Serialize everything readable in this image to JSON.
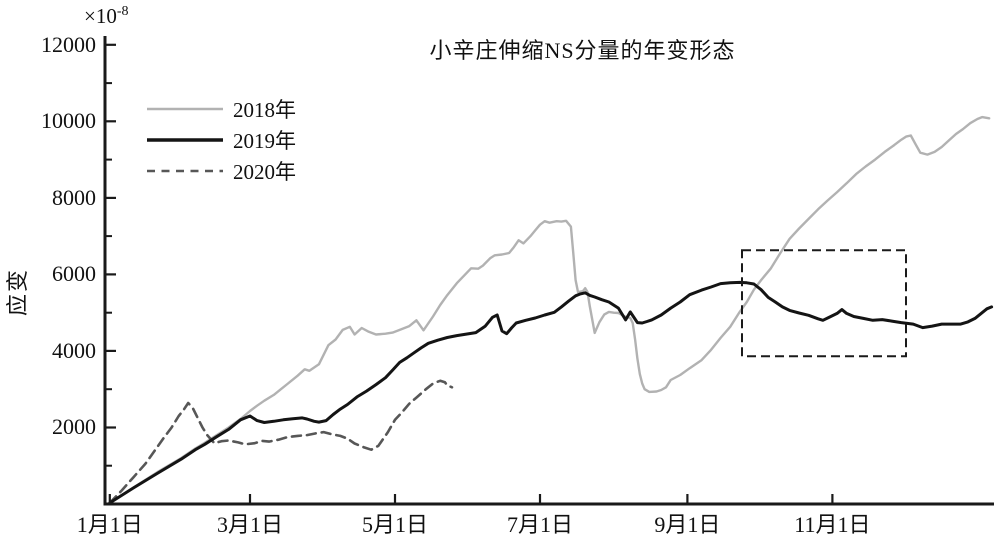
{
  "chart_data": {
    "type": "line",
    "title": "小辛庄伸缩NS分量的年变形态",
    "ylabel": "应变",
    "xlabel": "",
    "y_multiplier_base": "×10",
    "y_multiplier_exponent": "-8",
    "grid": false,
    "legend_position": "upper-left",
    "xlim": [
      -2,
      372
    ],
    "ylim": [
      0,
      12230
    ],
    "y_major_ticks": [
      2000,
      4000,
      6000,
      8000,
      10000,
      12000
    ],
    "y_minor_ticks": [
      1000,
      3000,
      5000,
      7000,
      9000,
      11000
    ],
    "x_ticks": [
      {
        "day": 0,
        "label": "1月1日"
      },
      {
        "day": 59,
        "label": "3月1日"
      },
      {
        "day": 120,
        "label": "5月1日"
      },
      {
        "day": 181,
        "label": "7月1日"
      },
      {
        "day": 243,
        "label": "9月1日"
      },
      {
        "day": 304,
        "label": "11月1日"
      }
    ],
    "axis_color": "#1a1a1a",
    "series": [
      {
        "id": "2018",
        "name": "2018年",
        "color": "#b2b2b2",
        "line_style": "solid",
        "line_width": 2.4,
        "points": [
          [
            0,
            30
          ],
          [
            10,
            430
          ],
          [
            20,
            830
          ],
          [
            30,
            1200
          ],
          [
            36,
            1450
          ],
          [
            40,
            1600
          ],
          [
            45,
            1800
          ],
          [
            50,
            2000
          ],
          [
            55,
            2220
          ],
          [
            59,
            2430
          ],
          [
            62,
            2570
          ],
          [
            65,
            2700
          ],
          [
            69,
            2850
          ],
          [
            72,
            3000
          ],
          [
            75,
            3150
          ],
          [
            79,
            3350
          ],
          [
            82,
            3520
          ],
          [
            84,
            3480
          ],
          [
            88,
            3650
          ],
          [
            92,
            4150
          ],
          [
            95,
            4300
          ],
          [
            98,
            4550
          ],
          [
            101,
            4630
          ],
          [
            103,
            4430
          ],
          [
            106,
            4600
          ],
          [
            109,
            4500
          ],
          [
            112,
            4430
          ],
          [
            116,
            4450
          ],
          [
            119,
            4480
          ],
          [
            122,
            4550
          ],
          [
            126,
            4650
          ],
          [
            129,
            4800
          ],
          [
            132,
            4540
          ],
          [
            136,
            4900
          ],
          [
            139,
            5200
          ],
          [
            142,
            5460
          ],
          [
            146,
            5770
          ],
          [
            150,
            6030
          ],
          [
            152,
            6160
          ],
          [
            155,
            6150
          ],
          [
            157,
            6230
          ],
          [
            160,
            6420
          ],
          [
            162,
            6500
          ],
          [
            165,
            6520
          ],
          [
            168,
            6560
          ],
          [
            170,
            6710
          ],
          [
            172,
            6890
          ],
          [
            174,
            6810
          ],
          [
            177,
            7000
          ],
          [
            179,
            7150
          ],
          [
            181,
            7300
          ],
          [
            183,
            7390
          ],
          [
            185,
            7350
          ],
          [
            188,
            7390
          ],
          [
            190,
            7380
          ],
          [
            192,
            7400
          ],
          [
            194,
            7250
          ],
          [
            195,
            6550
          ],
          [
            196,
            5850
          ],
          [
            197,
            5540
          ],
          [
            199,
            5560
          ],
          [
            200,
            5640
          ],
          [
            201,
            5540
          ],
          [
            202,
            5150
          ],
          [
            204,
            4470
          ],
          [
            206,
            4750
          ],
          [
            208,
            4950
          ],
          [
            210,
            5020
          ],
          [
            212,
            5000
          ],
          [
            214,
            4990
          ],
          [
            217,
            4890
          ],
          [
            219,
            4860
          ],
          [
            220,
            4730
          ],
          [
            221,
            4300
          ],
          [
            222,
            3800
          ],
          [
            223,
            3400
          ],
          [
            224,
            3150
          ],
          [
            225,
            3000
          ],
          [
            227,
            2930
          ],
          [
            230,
            2940
          ],
          [
            232,
            2980
          ],
          [
            234,
            3050
          ],
          [
            236,
            3240
          ],
          [
            240,
            3370
          ],
          [
            244,
            3550
          ],
          [
            249,
            3760
          ],
          [
            253,
            4030
          ],
          [
            257,
            4340
          ],
          [
            261,
            4630
          ],
          [
            265,
            5020
          ],
          [
            268,
            5280
          ],
          [
            271,
            5600
          ],
          [
            274,
            5850
          ],
          [
            278,
            6150
          ],
          [
            282,
            6550
          ],
          [
            286,
            6930
          ],
          [
            290,
            7200
          ],
          [
            294,
            7450
          ],
          [
            298,
            7700
          ],
          [
            302,
            7930
          ],
          [
            306,
            8150
          ],
          [
            310,
            8380
          ],
          [
            314,
            8620
          ],
          [
            318,
            8820
          ],
          [
            322,
            9000
          ],
          [
            326,
            9200
          ],
          [
            330,
            9380
          ],
          [
            333,
            9520
          ],
          [
            335,
            9600
          ],
          [
            337,
            9630
          ],
          [
            339,
            9400
          ],
          [
            341,
            9180
          ],
          [
            344,
            9130
          ],
          [
            347,
            9200
          ],
          [
            350,
            9330
          ],
          [
            353,
            9500
          ],
          [
            356,
            9670
          ],
          [
            359,
            9800
          ],
          [
            362,
            9950
          ],
          [
            365,
            10060
          ],
          [
            367,
            10110
          ],
          [
            370,
            10080
          ]
        ]
      },
      {
        "id": "2019",
        "name": "2019年",
        "color": "#141414",
        "line_style": "solid",
        "line_width": 3,
        "points": [
          [
            0,
            30
          ],
          [
            10,
            420
          ],
          [
            20,
            800
          ],
          [
            30,
            1170
          ],
          [
            36,
            1420
          ],
          [
            40,
            1560
          ],
          [
            45,
            1760
          ],
          [
            50,
            1950
          ],
          [
            55,
            2200
          ],
          [
            59,
            2300
          ],
          [
            62,
            2180
          ],
          [
            65,
            2130
          ],
          [
            69,
            2160
          ],
          [
            73,
            2200
          ],
          [
            77,
            2230
          ],
          [
            81,
            2250
          ],
          [
            83,
            2220
          ],
          [
            86,
            2160
          ],
          [
            88,
            2140
          ],
          [
            91,
            2180
          ],
          [
            94,
            2340
          ],
          [
            97,
            2480
          ],
          [
            100,
            2600
          ],
          [
            104,
            2800
          ],
          [
            108,
            2950
          ],
          [
            112,
            3120
          ],
          [
            116,
            3300
          ],
          [
            119,
            3500
          ],
          [
            122,
            3700
          ],
          [
            125,
            3820
          ],
          [
            128,
            3950
          ],
          [
            131,
            4080
          ],
          [
            134,
            4200
          ],
          [
            138,
            4280
          ],
          [
            142,
            4350
          ],
          [
            146,
            4400
          ],
          [
            150,
            4440
          ],
          [
            154,
            4480
          ],
          [
            158,
            4650
          ],
          [
            161,
            4880
          ],
          [
            163,
            4940
          ],
          [
            165,
            4520
          ],
          [
            167,
            4450
          ],
          [
            169,
            4600
          ],
          [
            171,
            4730
          ],
          [
            175,
            4800
          ],
          [
            179,
            4860
          ],
          [
            183,
            4940
          ],
          [
            187,
            5010
          ],
          [
            190,
            5150
          ],
          [
            193,
            5300
          ],
          [
            196,
            5440
          ],
          [
            198,
            5490
          ],
          [
            200,
            5520
          ],
          [
            202,
            5450
          ],
          [
            204,
            5410
          ],
          [
            207,
            5340
          ],
          [
            210,
            5280
          ],
          [
            214,
            5120
          ],
          [
            217,
            4810
          ],
          [
            219,
            5020
          ],
          [
            222,
            4740
          ],
          [
            224,
            4730
          ],
          [
            226,
            4770
          ],
          [
            228,
            4810
          ],
          [
            232,
            4940
          ],
          [
            236,
            5120
          ],
          [
            240,
            5280
          ],
          [
            244,
            5470
          ],
          [
            249,
            5590
          ],
          [
            253,
            5670
          ],
          [
            257,
            5760
          ],
          [
            261,
            5780
          ],
          [
            265,
            5790
          ],
          [
            268,
            5780
          ],
          [
            271,
            5750
          ],
          [
            274,
            5600
          ],
          [
            277,
            5400
          ],
          [
            280,
            5280
          ],
          [
            283,
            5150
          ],
          [
            286,
            5060
          ],
          [
            290,
            4990
          ],
          [
            294,
            4930
          ],
          [
            298,
            4840
          ],
          [
            300,
            4800
          ],
          [
            303,
            4890
          ],
          [
            306,
            4980
          ],
          [
            308,
            5080
          ],
          [
            310,
            4980
          ],
          [
            313,
            4900
          ],
          [
            317,
            4850
          ],
          [
            321,
            4800
          ],
          [
            325,
            4820
          ],
          [
            329,
            4780
          ],
          [
            333,
            4740
          ],
          [
            338,
            4700
          ],
          [
            342,
            4610
          ],
          [
            346,
            4650
          ],
          [
            350,
            4700
          ],
          [
            354,
            4700
          ],
          [
            358,
            4700
          ],
          [
            361,
            4760
          ],
          [
            364,
            4850
          ],
          [
            367,
            5000
          ],
          [
            369,
            5100
          ],
          [
            371,
            5150
          ]
        ]
      },
      {
        "id": "2020",
        "name": "2020年",
        "color": "#575757",
        "line_style": "dashed",
        "line_width": 2.6,
        "points": [
          [
            0,
            30
          ],
          [
            5,
            350
          ],
          [
            10,
            700
          ],
          [
            15,
            1050
          ],
          [
            19,
            1400
          ],
          [
            23,
            1750
          ],
          [
            26,
            2000
          ],
          [
            29,
            2300
          ],
          [
            31,
            2450
          ],
          [
            33,
            2640
          ],
          [
            35,
            2500
          ],
          [
            37,
            2250
          ],
          [
            39,
            2000
          ],
          [
            41,
            1800
          ],
          [
            44,
            1590
          ],
          [
            47,
            1640
          ],
          [
            50,
            1660
          ],
          [
            54,
            1610
          ],
          [
            57,
            1560
          ],
          [
            61,
            1590
          ],
          [
            64,
            1650
          ],
          [
            67,
            1630
          ],
          [
            71,
            1680
          ],
          [
            75,
            1750
          ],
          [
            79,
            1780
          ],
          [
            83,
            1800
          ],
          [
            87,
            1850
          ],
          [
            90,
            1880
          ],
          [
            93,
            1830
          ],
          [
            97,
            1780
          ],
          [
            100,
            1710
          ],
          [
            103,
            1580
          ],
          [
            107,
            1480
          ],
          [
            110,
            1420
          ],
          [
            113,
            1520
          ],
          [
            117,
            1880
          ],
          [
            120,
            2200
          ],
          [
            123,
            2400
          ],
          [
            126,
            2620
          ],
          [
            129,
            2780
          ],
          [
            133,
            3000
          ],
          [
            136,
            3150
          ],
          [
            139,
            3220
          ],
          [
            141,
            3180
          ],
          [
            142,
            3100
          ],
          [
            144,
            3050
          ]
        ]
      }
    ],
    "annotation_box": {
      "day_start": 266,
      "day_end": 335,
      "value_top": 6630,
      "value_bottom": 3860,
      "color": "#1a1a1a",
      "style": "dashed"
    }
  }
}
